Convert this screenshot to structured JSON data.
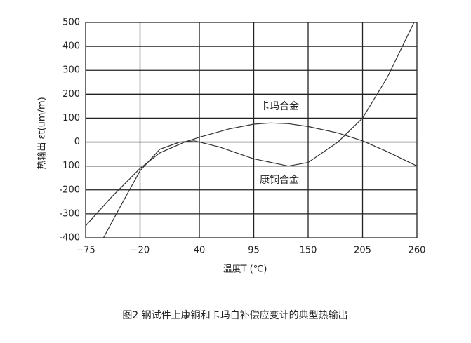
{
  "chart_data": {
    "type": "line",
    "title": "图2 钢试件上康铜和卡玛自补偿应变计的典型热输出",
    "x_label": "温度T (℃)",
    "y_label": "热输出 εt(um/m)",
    "xlim": [
      -75,
      260
    ],
    "ylim": [
      -400,
      500
    ],
    "xticks": [
      {
        "value": -75,
        "label": "−75"
      },
      {
        "value": -20,
        "label": "−20"
      },
      40,
      95,
      150,
      205,
      260
    ],
    "yticks": [
      {
        "value": -400,
        "label": "-400"
      },
      {
        "value": -300,
        "label": "-300"
      },
      {
        "value": -200,
        "label": "-200"
      },
      {
        "value": -100,
        "label": "-100"
      },
      0,
      100,
      200,
      300,
      400,
      500
    ],
    "grid": true,
    "series": [
      {
        "name": "卡玛合金",
        "color": "#333333",
        "x": [
          -75,
          -50,
          -20,
          0,
          25,
          40,
          70,
          95,
          112,
          130,
          150,
          180,
          205,
          230,
          260
        ],
        "values": [
          -350,
          -235,
          -110,
          -45,
          0,
          20,
          55,
          75,
          80,
          77,
          65,
          38,
          5,
          -40,
          -100
        ]
      },
      {
        "name": "康铜合金",
        "color": "#333333",
        "x": [
          -57,
          -40,
          -20,
          0,
          20,
          35,
          40,
          60,
          95,
          130,
          150,
          180,
          205,
          230,
          257
        ],
        "values": [
          -400,
          -270,
          -120,
          -30,
          0,
          5,
          0,
          -20,
          -70,
          -100,
          -85,
          0,
          100,
          270,
          500
        ]
      }
    ]
  }
}
